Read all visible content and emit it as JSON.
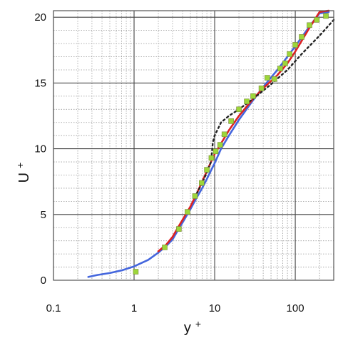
{
  "chart_data": {
    "type": "line",
    "x_scale": "log",
    "xlim": [
      0.1,
      300
    ],
    "ylim": [
      0,
      20.5
    ],
    "xlabel": "y",
    "xlabel_sup": "+",
    "ylabel": "U",
    "ylabel_sup": "+",
    "x_ticks": [
      0.1,
      1,
      10,
      100
    ],
    "x_tick_labels": [
      "0.1",
      "1",
      "10",
      "100"
    ],
    "y_ticks": [
      0,
      5,
      10,
      15,
      20
    ],
    "y_tick_labels": [
      "0",
      "5",
      "10",
      "15",
      "20"
    ],
    "grid": true,
    "legend": "none",
    "series": [
      {
        "style": "solid",
        "color": "#4466dd",
        "x": [
          0.27,
          0.35,
          0.5,
          0.7,
          1.0,
          1.5,
          2.0,
          2.5,
          3.0,
          3.5,
          4.0,
          5.0,
          6.0,
          7.0,
          8.0,
          9.0,
          10.0,
          12.0,
          15.0,
          20.0,
          30.0,
          40.0,
          60.0,
          80.0,
          100.0,
          150.0,
          200.0,
          260.0
        ],
        "y": [
          0.25,
          0.4,
          0.55,
          0.75,
          1.05,
          1.55,
          2.1,
          2.6,
          3.1,
          3.8,
          4.4,
          5.4,
          6.3,
          7.0,
          7.7,
          8.35,
          8.9,
          10.0,
          11.0,
          12.2,
          13.7,
          14.7,
          16.0,
          17.0,
          17.8,
          19.3,
          20.3,
          20.4
        ]
      },
      {
        "style": "solid",
        "color": "#dd2222",
        "x": [
          2.0,
          2.5,
          3.0,
          3.5,
          4.0,
          5.0,
          6.0,
          7.0,
          8.0,
          9.0,
          10.0,
          12.0,
          15.0,
          20.0,
          30.0,
          40.0,
          60.0,
          80.0,
          100.0,
          150.0,
          200.0,
          260.0
        ],
        "y": [
          2.2,
          2.7,
          3.3,
          4.0,
          4.6,
          5.6,
          6.6,
          7.5,
          8.3,
          9.0,
          9.6,
          10.4,
          11.4,
          12.5,
          13.8,
          14.6,
          15.6,
          16.5,
          17.4,
          19.2,
          20.4,
          20.5
        ]
      },
      {
        "style": "dotted",
        "color": "#222222",
        "x": [
          6.0,
          7.0,
          8.0,
          9.0,
          9.5,
          10.0,
          12.0,
          15.0,
          20.0,
          30.0,
          50.0,
          80.0,
          120.0,
          200.0,
          300.0
        ],
        "y": [
          6.6,
          7.4,
          8.2,
          9.0,
          10.5,
          11.0,
          12.0,
          12.5,
          13.0,
          13.8,
          14.9,
          16.0,
          17.2,
          18.6,
          19.8
        ]
      },
      {
        "style": "markers",
        "color": "#9dd63a",
        "x": [
          1.05,
          2.4,
          3.6,
          4.6,
          5.7,
          6.9,
          8.0,
          9.1,
          10.3,
          11.7,
          13.2,
          16.0,
          20.0,
          25.0,
          30.0,
          38.0,
          45.0,
          55.0,
          65.0,
          75.0,
          85.0,
          100.0,
          120.0,
          150.0,
          185.0,
          240.0
        ],
        "y": [
          0.65,
          2.5,
          3.9,
          5.2,
          6.4,
          7.4,
          8.4,
          9.3,
          9.8,
          10.3,
          11.1,
          12.1,
          13.0,
          13.6,
          14.0,
          14.6,
          15.4,
          15.3,
          16.1,
          16.5,
          17.2,
          17.9,
          18.5,
          19.4,
          19.8,
          20.1
        ]
      }
    ]
  }
}
